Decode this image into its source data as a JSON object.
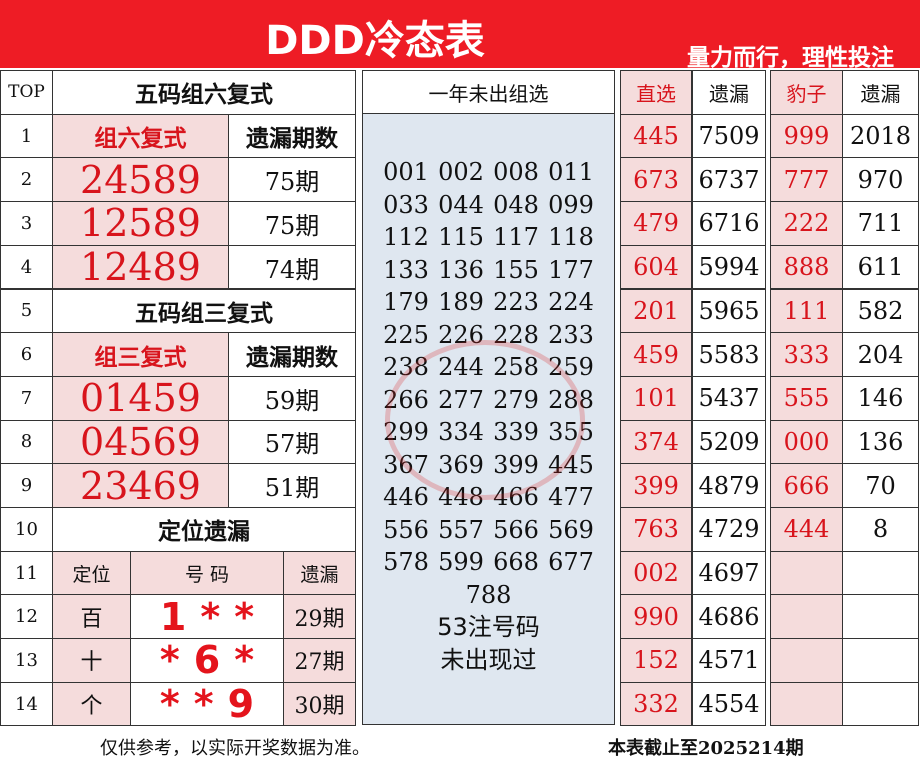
{
  "header": {
    "title": "DDD冷态表",
    "slogan": "量力而行，理性投注",
    "bg_color": "#ee1c25"
  },
  "top_col": {
    "header": "TOP",
    "rows": [
      "1",
      "2",
      "3",
      "4",
      "5",
      "6",
      "7",
      "8",
      "9",
      "10",
      "11",
      "12",
      "13",
      "14"
    ]
  },
  "group6": {
    "title": "五码组六复式",
    "col1": "组六复式",
    "col2": "遗漏期数",
    "rows": [
      {
        "code": "24589",
        "miss": "75期"
      },
      {
        "code": "12589",
        "miss": "75期"
      },
      {
        "code": "12489",
        "miss": "74期"
      }
    ]
  },
  "group3": {
    "title": "五码组三复式",
    "col1": "组三复式",
    "col2": "遗漏期数",
    "rows": [
      {
        "code": "01459",
        "miss": "59期"
      },
      {
        "code": "04569",
        "miss": "57期"
      },
      {
        "code": "23469",
        "miss": "51期"
      }
    ]
  },
  "position": {
    "title": "定位遗漏",
    "col1": "定位",
    "col2": "号 码",
    "col3": "遗漏",
    "rows": [
      {
        "pos": "百",
        "code": "1**",
        "miss": "29期"
      },
      {
        "pos": "十",
        "code": "*6*",
        "miss": "27期"
      },
      {
        "pos": "个",
        "code": "**9",
        "miss": "30期"
      }
    ]
  },
  "unseen": {
    "title": "一年未出组选",
    "numbers": [
      [
        "001",
        "002",
        "008",
        "011"
      ],
      [
        "033",
        "044",
        "048",
        "099"
      ],
      [
        "112",
        "115",
        "117",
        "118"
      ],
      [
        "133",
        "136",
        "155",
        "177"
      ],
      [
        "179",
        "189",
        "223",
        "224"
      ],
      [
        "225",
        "226",
        "228",
        "233"
      ],
      [
        "238",
        "244",
        "258",
        "259"
      ],
      [
        "266",
        "277",
        "279",
        "288"
      ],
      [
        "299",
        "334",
        "339",
        "355"
      ],
      [
        "367",
        "369",
        "399",
        "445"
      ],
      [
        "446",
        "448",
        "466",
        "477"
      ],
      [
        "556",
        "557",
        "566",
        "569"
      ],
      [
        "578",
        "599",
        "668",
        "677"
      ],
      [
        "788"
      ]
    ],
    "summary1": "53注号码",
    "summary2": "未出现过"
  },
  "straight": {
    "col1": "直选",
    "col2": "遗漏",
    "rows": [
      [
        "445",
        "7509"
      ],
      [
        "673",
        "6737"
      ],
      [
        "479",
        "6716"
      ],
      [
        "604",
        "5994"
      ],
      [
        "201",
        "5965"
      ],
      [
        "459",
        "5583"
      ],
      [
        "101",
        "5437"
      ],
      [
        "374",
        "5209"
      ],
      [
        "399",
        "4879"
      ],
      [
        "763",
        "4729"
      ],
      [
        "002",
        "4697"
      ],
      [
        "990",
        "4686"
      ],
      [
        "152",
        "4571"
      ],
      [
        "332",
        "4554"
      ]
    ]
  },
  "triples": {
    "col1": "豹子",
    "col2": "遗漏",
    "rows": [
      [
        "999",
        "2018"
      ],
      [
        "777",
        "970"
      ],
      [
        "222",
        "711"
      ],
      [
        "888",
        "611"
      ],
      [
        "111",
        "582"
      ],
      [
        "333",
        "204"
      ],
      [
        "555",
        "146"
      ],
      [
        "000",
        "136"
      ],
      [
        "666",
        "70"
      ],
      [
        "444",
        "8"
      ],
      [
        "",
        ""
      ],
      [
        "",
        ""
      ],
      [
        "",
        ""
      ],
      [
        "",
        ""
      ]
    ]
  },
  "footer": {
    "left": "仅供参考，以实际开奖数据为准。",
    "right": "本表截止至2025214期"
  }
}
